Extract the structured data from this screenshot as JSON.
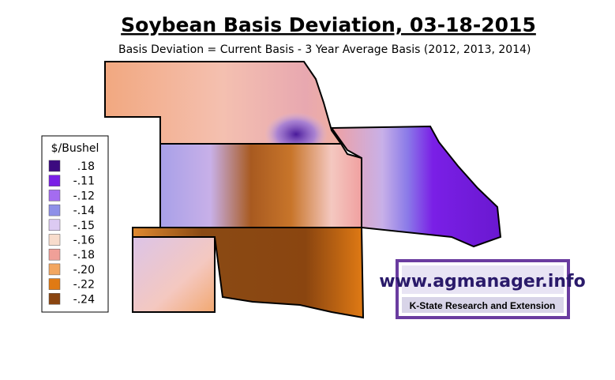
{
  "title": "Soybean Basis Deviation, 03-18-2015",
  "subtitle": "Basis Deviation = Current Basis - 3 Year Average Basis (2012, 2013, 2014)",
  "legend": {
    "title": "$/Bushel",
    "items": [
      {
        "label": ".18",
        "color": "#3c0a80"
      },
      {
        "label": "-.11",
        "color": "#7a1fe6"
      },
      {
        "label": "-.12",
        "color": "#a46cf0"
      },
      {
        "label": "-.14",
        "color": "#8e90e8"
      },
      {
        "label": "-.15",
        "color": "#dccaf2"
      },
      {
        "label": "-.16",
        "color": "#f8dccc"
      },
      {
        "label": "-.18",
        "color": "#f0a098"
      },
      {
        "label": "-.20",
        "color": "#f2a660"
      },
      {
        "label": "-.22",
        "color": "#e07a14"
      },
      {
        "label": "-.24",
        "color": "#8a4510"
      }
    ]
  },
  "logo": {
    "site": "www.agmanager.info",
    "org": "K-State Research and Extension"
  }
}
